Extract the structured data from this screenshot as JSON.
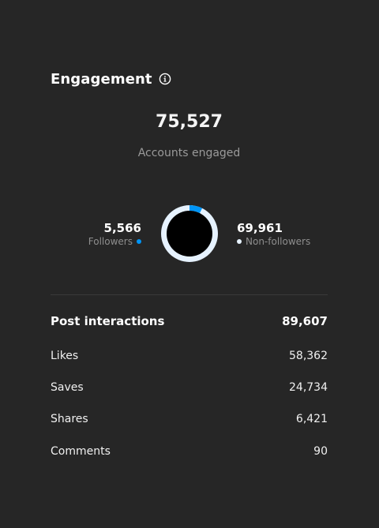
{
  "engagement": {
    "title": "Engagement",
    "info_icon": "info-icon",
    "accounts_engaged": {
      "value": "75,527",
      "label": "Accounts engaged"
    },
    "followers": {
      "value": "5,566",
      "label": "Followers",
      "color": "#0095f6",
      "count": 5566
    },
    "non_followers": {
      "value": "69,961",
      "label": "Non-followers",
      "color": "#e6f2ff",
      "count": 69961
    }
  },
  "interactions": {
    "title": "Post interactions",
    "total": "89,607",
    "rows": [
      {
        "label": "Likes",
        "value": "58,362"
      },
      {
        "label": "Saves",
        "value": "24,734"
      },
      {
        "label": "Shares",
        "value": "6,421"
      },
      {
        "label": "Comments",
        "value": "90"
      }
    ]
  }
}
